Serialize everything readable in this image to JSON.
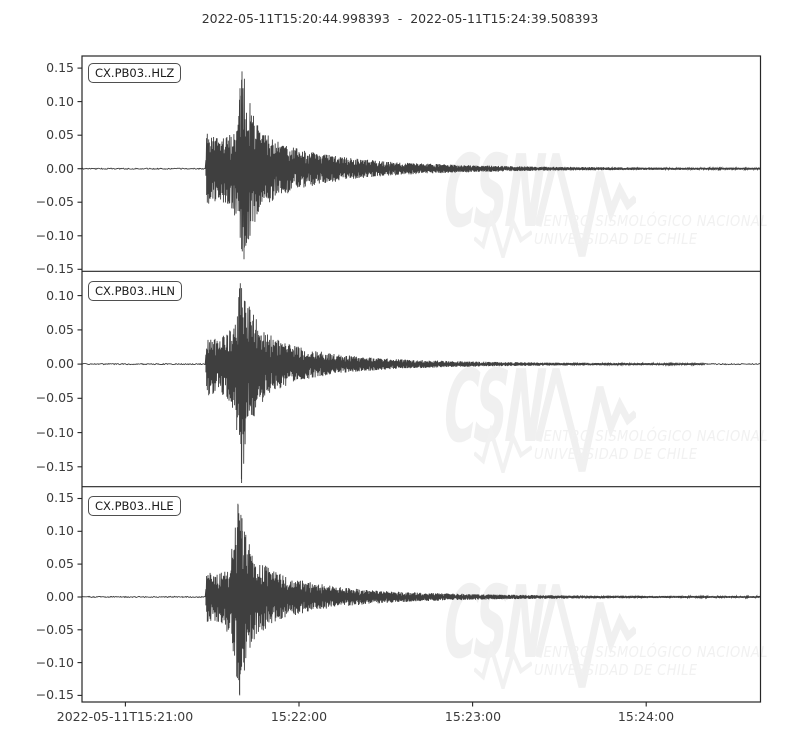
{
  "chart_data": {
    "type": "line",
    "subtype": "seismogram",
    "title": "2022-05-11T15:20:44.998393  -  2022-05-11T15:24:39.508393",
    "time_range": {
      "start": "2022-05-11T15:20:44.998393",
      "end": "2022-05-11T15:24:39.508393",
      "duration_seconds": 234.51
    },
    "x_axis": {
      "ticks": [
        {
          "t_s": 15.0,
          "label": "2022-05-11T15:21:00"
        },
        {
          "t_s": 75.0,
          "label": "15:22:00"
        },
        {
          "t_s": 135.0,
          "label": "15:23:00"
        },
        {
          "t_s": 195.0,
          "label": "15:24:00"
        }
      ]
    },
    "grid": false,
    "legend": "per-panel label box, upper-left",
    "panels": [
      {
        "label": "CX.PB03..HLZ",
        "ylim": [
          -0.153,
          0.168
        ],
        "y_ticks": [
          {
            "v": 0.15,
            "label": "0.15"
          },
          {
            "v": 0.1,
            "label": "0.10"
          },
          {
            "v": 0.05,
            "label": "0.05"
          },
          {
            "v": 0.0,
            "label": "0.00"
          },
          {
            "v": -0.05,
            "label": "−0.05"
          },
          {
            "v": -0.1,
            "label": "−0.10"
          },
          {
            "v": -0.15,
            "label": "−0.15"
          }
        ],
        "onset_s": 42.7,
        "max_amplitude": 0.145,
        "min_amplitude": -0.135,
        "envelope_pos": [
          [
            0,
            0.0007
          ],
          [
            42.7,
            0.0007
          ],
          [
            43.1,
            0.048
          ],
          [
            47,
            0.041
          ],
          [
            51,
            0.046
          ],
          [
            53.5,
            0.06
          ],
          [
            55.2,
            0.142
          ],
          [
            56.5,
            0.115
          ],
          [
            58.5,
            0.085
          ],
          [
            61,
            0.06
          ],
          [
            64,
            0.047
          ],
          [
            68,
            0.037
          ],
          [
            74,
            0.028
          ],
          [
            82,
            0.021
          ],
          [
            92,
            0.015
          ],
          [
            104,
            0.01
          ],
          [
            118,
            0.007
          ],
          [
            134,
            0.0048
          ],
          [
            152,
            0.0032
          ],
          [
            175,
            0.0022
          ],
          [
            200,
            0.0016
          ],
          [
            234.5,
            0.0013
          ]
        ],
        "envelope_neg": [
          [
            0,
            0.0007
          ],
          [
            42.7,
            0.0007
          ],
          [
            43.1,
            0.05
          ],
          [
            47,
            0.044
          ],
          [
            51,
            0.05
          ],
          [
            53.5,
            0.07
          ],
          [
            55.8,
            0.132
          ],
          [
            57,
            0.11
          ],
          [
            58.5,
            0.088
          ],
          [
            61,
            0.062
          ],
          [
            64,
            0.048
          ],
          [
            68,
            0.038
          ],
          [
            74,
            0.029
          ],
          [
            82,
            0.021
          ],
          [
            92,
            0.015
          ],
          [
            104,
            0.01
          ],
          [
            118,
            0.007
          ],
          [
            134,
            0.0048
          ],
          [
            152,
            0.0032
          ],
          [
            175,
            0.0022
          ],
          [
            200,
            0.0016
          ],
          [
            234.5,
            0.0013
          ]
        ],
        "peaks": [
          {
            "t": 55.3,
            "v": 0.145
          },
          {
            "t": 54.6,
            "v": 0.12
          },
          {
            "t": 56.0,
            "v": -0.135
          },
          {
            "t": 56.6,
            "v": -0.115
          }
        ],
        "seed": 7
      },
      {
        "label": "CX.PB03..HLN",
        "ylim": [
          -0.179,
          0.1355
        ],
        "y_ticks": [
          {
            "v": 0.1,
            "label": "0.10"
          },
          {
            "v": 0.05,
            "label": "0.05"
          },
          {
            "v": 0.0,
            "label": "0.00"
          },
          {
            "v": -0.05,
            "label": "−0.05"
          },
          {
            "v": -0.1,
            "label": "−0.10"
          },
          {
            "v": -0.15,
            "label": "−0.15"
          }
        ],
        "onset_s": 42.7,
        "max_amplitude": 0.118,
        "min_amplitude": -0.168,
        "envelope_pos": [
          [
            0,
            0.0007
          ],
          [
            42.7,
            0.0007
          ],
          [
            43.1,
            0.04
          ],
          [
            46.5,
            0.035
          ],
          [
            50,
            0.04
          ],
          [
            53,
            0.055
          ],
          [
            54.8,
            0.115
          ],
          [
            56,
            0.1
          ],
          [
            58,
            0.078
          ],
          [
            60.5,
            0.058
          ],
          [
            63.5,
            0.044
          ],
          [
            67,
            0.034
          ],
          [
            72,
            0.026
          ],
          [
            79,
            0.019
          ],
          [
            88,
            0.013
          ],
          [
            99,
            0.009
          ],
          [
            112,
            0.006
          ],
          [
            128,
            0.004
          ],
          [
            146,
            0.0027
          ],
          [
            170,
            0.0018
          ],
          [
            200,
            0.0013
          ],
          [
            234.5,
            0.001
          ]
        ],
        "envelope_neg": [
          [
            0,
            0.0007
          ],
          [
            42.7,
            0.0007
          ],
          [
            43.1,
            0.043
          ],
          [
            46.5,
            0.038
          ],
          [
            50,
            0.044
          ],
          [
            53,
            0.07
          ],
          [
            55.2,
            0.16
          ],
          [
            56.5,
            0.115
          ],
          [
            58,
            0.085
          ],
          [
            60.5,
            0.06
          ],
          [
            63.5,
            0.046
          ],
          [
            67,
            0.035
          ],
          [
            72,
            0.027
          ],
          [
            79,
            0.019
          ],
          [
            88,
            0.013
          ],
          [
            99,
            0.009
          ],
          [
            112,
            0.006
          ],
          [
            128,
            0.004
          ],
          [
            146,
            0.0027
          ],
          [
            170,
            0.0018
          ],
          [
            200,
            0.0013
          ],
          [
            234.5,
            0.001
          ]
        ],
        "peaks": [
          {
            "t": 55.1,
            "v": -0.168
          },
          {
            "t": 54.7,
            "v": 0.118
          },
          {
            "t": 55.9,
            "v": -0.13
          }
        ],
        "seed": 13
      },
      {
        "label": "CX.PB03..HLE",
        "ylim": [
          -0.16,
          0.168
        ],
        "y_ticks": [
          {
            "v": 0.15,
            "label": "0.15"
          },
          {
            "v": 0.1,
            "label": "0.10"
          },
          {
            "v": 0.05,
            "label": "0.05"
          },
          {
            "v": 0.0,
            "label": "0.00"
          },
          {
            "v": -0.05,
            "label": "−0.05"
          },
          {
            "v": -0.1,
            "label": "−0.10"
          },
          {
            "v": -0.15,
            "label": "−0.15"
          }
        ],
        "onset_s": 42.7,
        "max_amplitude": 0.142,
        "min_amplitude": -0.15,
        "envelope_pos": [
          [
            0,
            0.0007
          ],
          [
            42.7,
            0.0007
          ],
          [
            43.1,
            0.035
          ],
          [
            46,
            0.031
          ],
          [
            49.5,
            0.038
          ],
          [
            52,
            0.07
          ],
          [
            53.8,
            0.138
          ],
          [
            55.2,
            0.112
          ],
          [
            57,
            0.083
          ],
          [
            59.5,
            0.06
          ],
          [
            62.5,
            0.046
          ],
          [
            66,
            0.036
          ],
          [
            71,
            0.028
          ],
          [
            78,
            0.021
          ],
          [
            87,
            0.015
          ],
          [
            98,
            0.01
          ],
          [
            111,
            0.007
          ],
          [
            126,
            0.0048
          ],
          [
            144,
            0.0033
          ],
          [
            168,
            0.0022
          ],
          [
            200,
            0.0015
          ],
          [
            234.5,
            0.0013
          ]
        ],
        "envelope_neg": [
          [
            0,
            0.0007
          ],
          [
            42.7,
            0.0007
          ],
          [
            43.1,
            0.037
          ],
          [
            46,
            0.033
          ],
          [
            49.5,
            0.04
          ],
          [
            52,
            0.075
          ],
          [
            54.2,
            0.146
          ],
          [
            55.5,
            0.115
          ],
          [
            57,
            0.086
          ],
          [
            59.5,
            0.062
          ],
          [
            62.5,
            0.047
          ],
          [
            66,
            0.036
          ],
          [
            71,
            0.028
          ],
          [
            78,
            0.021
          ],
          [
            87,
            0.015
          ],
          [
            98,
            0.01
          ],
          [
            111,
            0.007
          ],
          [
            126,
            0.0048
          ],
          [
            144,
            0.0033
          ],
          [
            168,
            0.0022
          ],
          [
            200,
            0.0015
          ],
          [
            234.5,
            0.0013
          ]
        ],
        "peaks": [
          {
            "t": 53.9,
            "v": 0.142
          },
          {
            "t": 54.5,
            "v": -0.15
          },
          {
            "t": 55.3,
            "v": 0.12
          }
        ],
        "seed": 29
      }
    ],
    "watermark": {
      "big": "CSN",
      "line1": "CENTRO SISMOLÓGICO NACIONAL",
      "line2": "UNIVERSIDAD DE CHILE"
    },
    "colors": {
      "trace": "#3f3f3f",
      "axis": "#262626",
      "tick_label": "#3b3b3b",
      "title": "#333333",
      "watermark": "#f0f0f0",
      "label_box_border": "#4f4f4f",
      "background": "#ffffff"
    }
  }
}
